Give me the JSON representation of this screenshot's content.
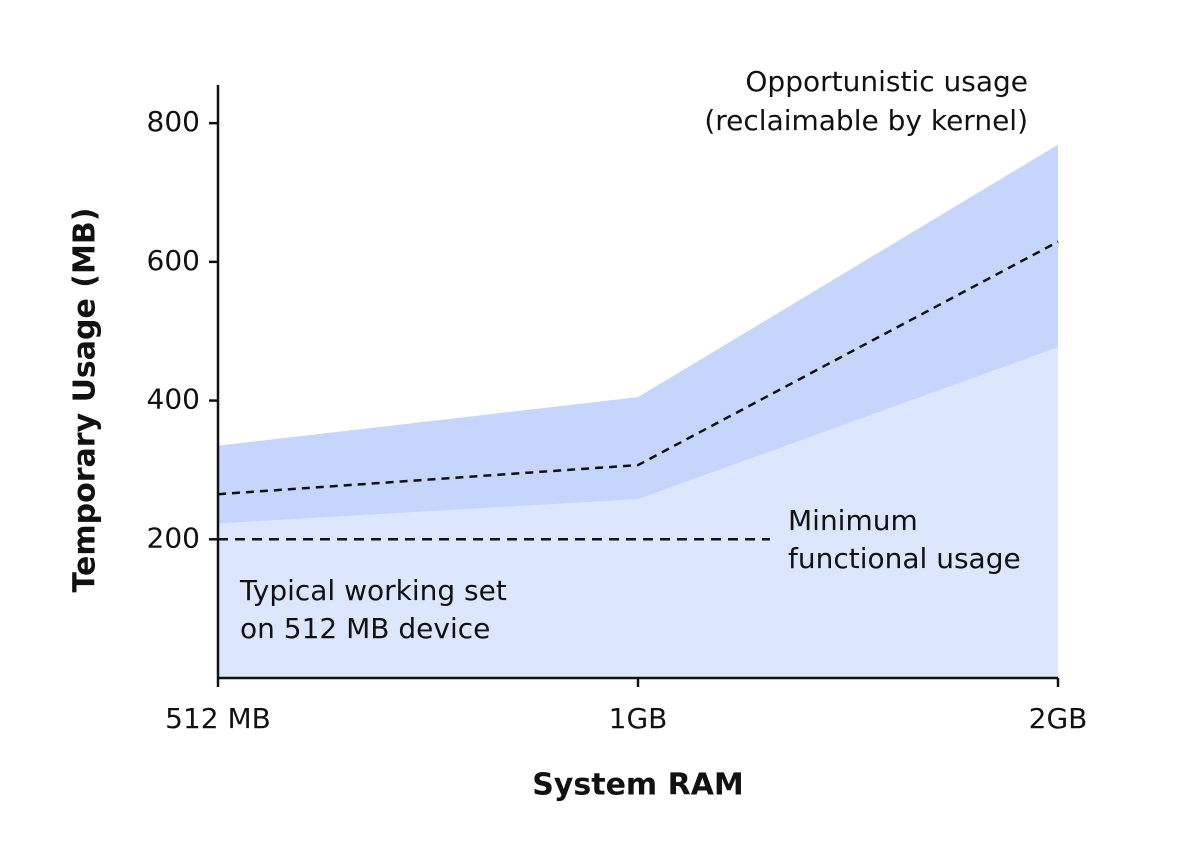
{
  "chart_data": {
    "type": "area",
    "x_label": "System RAM",
    "y_label": "Temporary Usage (MB)",
    "categories": [
      "512 MB",
      "1GB",
      "2GB"
    ],
    "series": [
      {
        "name": [
          "Opportunistic usage",
          "(reclaimable by kernel)"
        ],
        "color": "#c5d5fb",
        "values": [
          335,
          405,
          769
        ]
      },
      {
        "name": [
          "Typical working set",
          "on 512 MB device"
        ],
        "color": "#dce6fd",
        "values": [
          223,
          258,
          477
        ]
      },
      {
        "color": "#111111",
        "dashed": true,
        "values": [
          265,
          307,
          629
        ]
      }
    ],
    "reference_line": {
      "value": 200,
      "label": [
        "Minimum",
        "functional usage"
      ],
      "color": "#111111"
    },
    "ylim": [
      0,
      855
    ],
    "yticks": [
      200,
      400,
      600,
      800
    ],
    "grid": false
  }
}
